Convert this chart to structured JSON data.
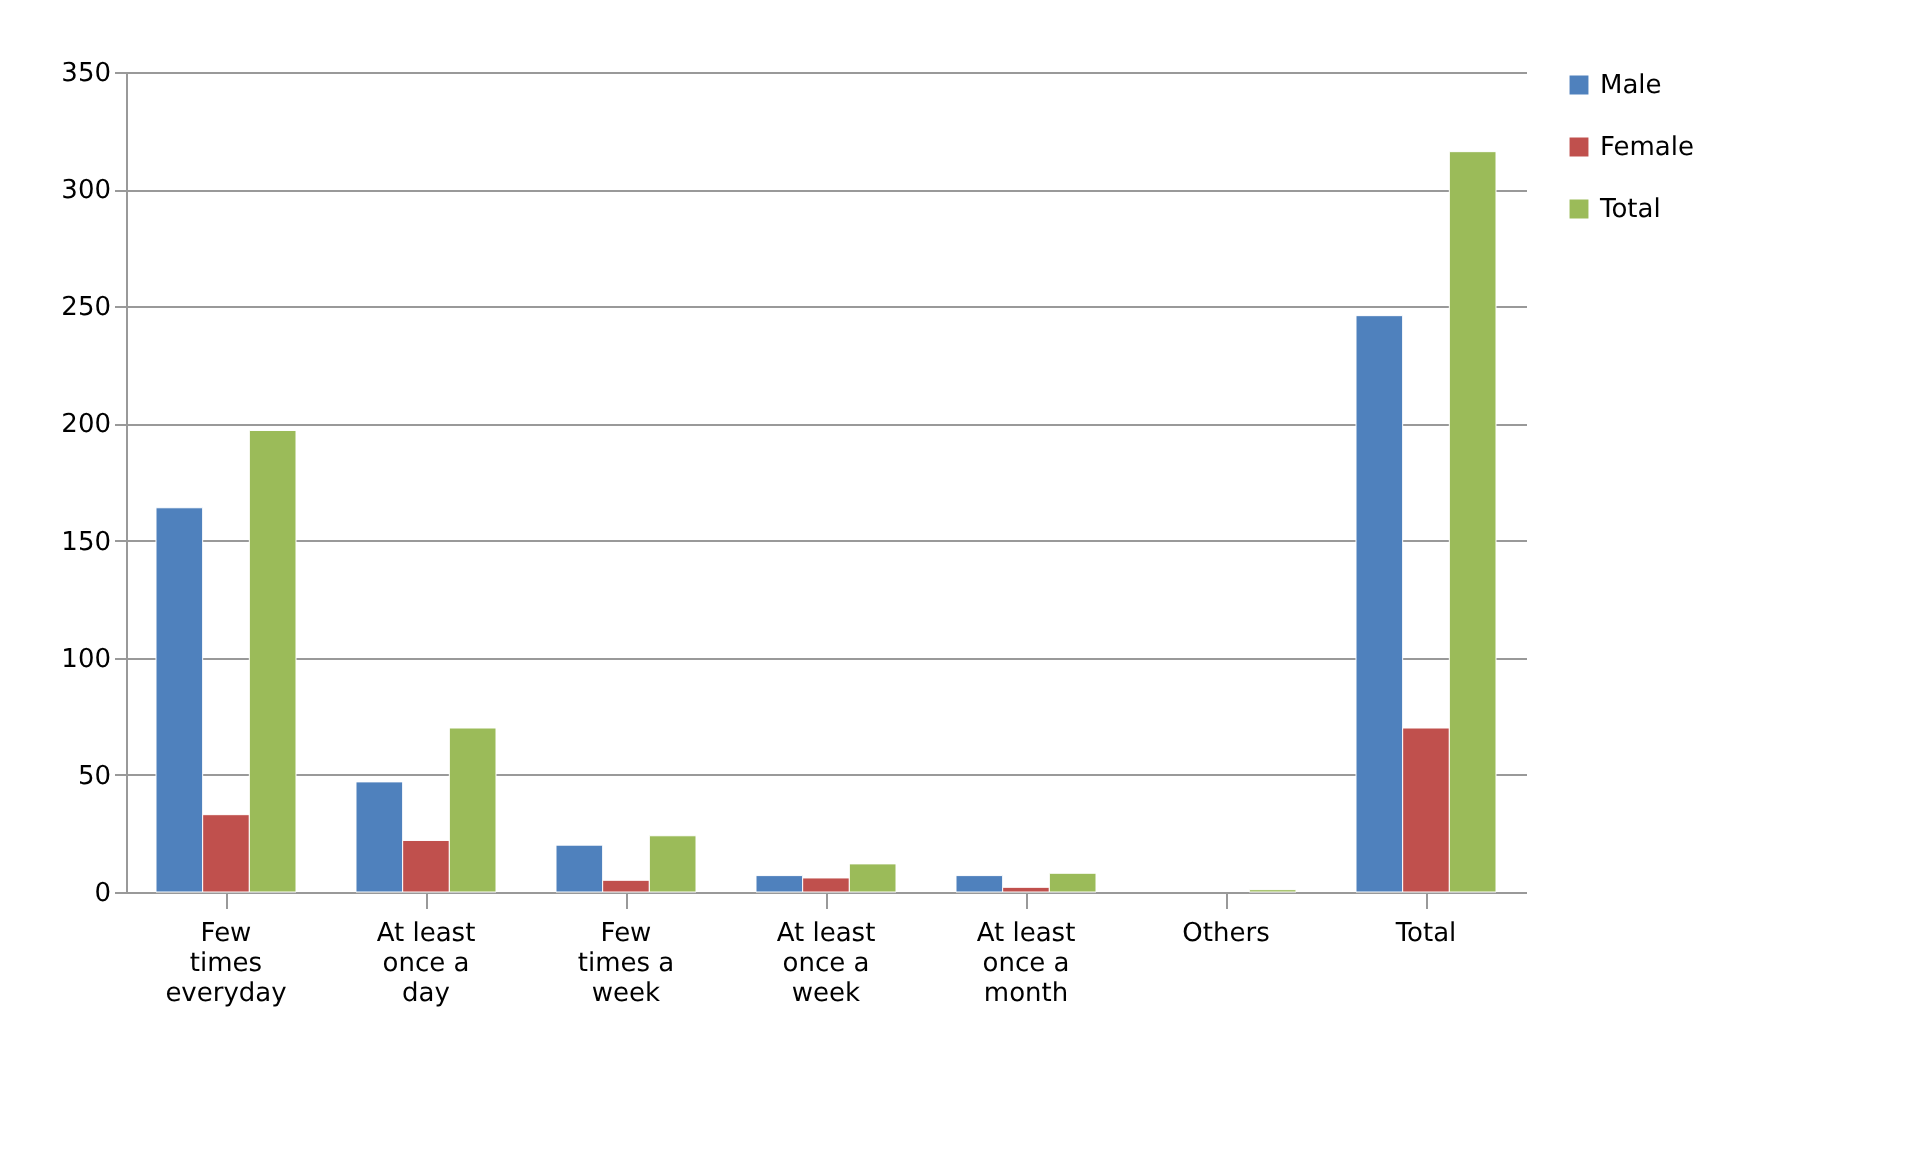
{
  "chart_data": {
    "type": "bar",
    "categories": [
      "Few times everyday",
      "At least once a day",
      "Few times a week",
      "At least once a week",
      "At least once a month",
      "Others",
      "Total"
    ],
    "series": [
      {
        "name": "Male",
        "color": "#4f81bd",
        "values": [
          164,
          47,
          20,
          7,
          7,
          null,
          246
        ]
      },
      {
        "name": "Female",
        "color": "#c0504d",
        "values": [
          33,
          22,
          5,
          6,
          2,
          null,
          70
        ]
      },
      {
        "name": "Total",
        "color": "#9bbb59",
        "values": [
          197,
          70,
          24,
          12,
          8,
          1,
          316
        ]
      }
    ],
    "ylim": [
      0,
      350
    ],
    "yticks": [
      0,
      50,
      100,
      150,
      200,
      250,
      300,
      350
    ],
    "grid": "y",
    "legend": "right"
  }
}
